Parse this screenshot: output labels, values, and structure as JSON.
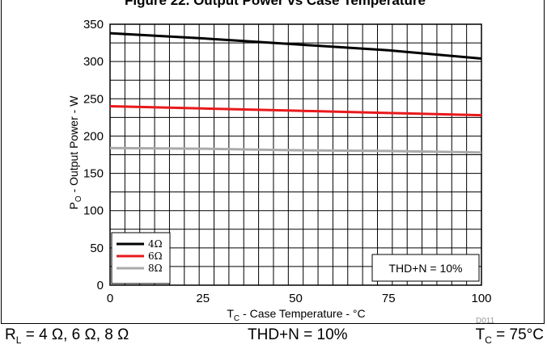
{
  "chart_data": {
    "type": "line",
    "title": "Figure 22. Output Power vs Case Temperature",
    "xlabel": "T_C - Case Temperature - °C",
    "ylabel": "P_O - Output Power - W",
    "xlim": [
      0,
      100
    ],
    "ylim": [
      0,
      350
    ],
    "x_ticks": [
      "0",
      "25",
      "50",
      "75",
      "100"
    ],
    "y_ticks": [
      "0",
      "50",
      "100",
      "150",
      "200",
      "250",
      "300",
      "350"
    ],
    "grid": true,
    "legend_position": "bottom-left",
    "annotation": "THD+N = 10%",
    "figure_code": "D011",
    "series": [
      {
        "name": "4Ω",
        "color": "#000000",
        "x": [
          0,
          25,
          50,
          75,
          100
        ],
        "values": [
          338,
          331,
          323,
          315,
          304
        ]
      },
      {
        "name": "6Ω",
        "color": "#e8191c",
        "x": [
          0,
          25,
          50,
          75,
          100
        ],
        "values": [
          240,
          237,
          234,
          231,
          228
        ]
      },
      {
        "name": "8Ω",
        "color": "#aaaaaa",
        "x": [
          0,
          25,
          50,
          75,
          100
        ],
        "values": [
          184,
          183,
          181,
          180,
          178
        ]
      }
    ]
  },
  "conditions": {
    "load": "RL = 4 Ω, 6 Ω, 8 Ω",
    "thd": "THD+N = 10%",
    "temp": "TC = 75°C"
  }
}
